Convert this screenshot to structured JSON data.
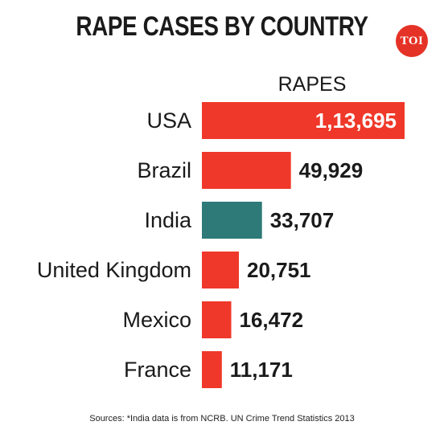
{
  "brand": {
    "logo_text": "TOI",
    "accent": "#e53226"
  },
  "colors": {
    "highlight": "#2e7a78",
    "bar": "#ef3829"
  },
  "source": "Sources: *India data is from NCRB. UN Crime Trend Statistics 2013",
  "chart_data": {
    "type": "bar",
    "orientation": "horizontal",
    "title": "RAPE CASES BY COUNTRY",
    "series_label": "RAPES",
    "categories": [
      "USA",
      "Brazil",
      "India",
      "United Kingdom",
      "Mexico",
      "France"
    ],
    "values": [
      113695,
      49929,
      33707,
      20751,
      16472,
      11171
    ],
    "value_labels": [
      "1,13,695",
      "49,929",
      "33,707",
      "20,751",
      "16,472",
      "11,171"
    ],
    "highlight_category": "India",
    "grid": false,
    "legend": "none"
  }
}
